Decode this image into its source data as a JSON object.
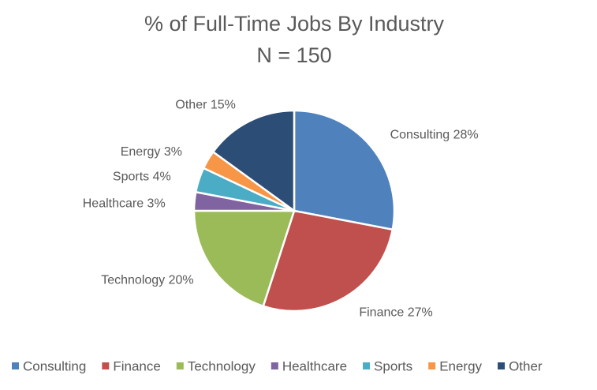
{
  "chart_data": {
    "type": "pie",
    "title": "% of Full-Time Jobs By Industry",
    "subtitle": "N = 150",
    "categories": [
      "Consulting",
      "Finance",
      "Technology",
      "Healthcare",
      "Sports",
      "Energy",
      "Other"
    ],
    "values": [
      28,
      27,
      20,
      3,
      4,
      3,
      15
    ],
    "value_labels": [
      "Consulting 28%",
      "Finance 27%",
      "Technology 20%",
      "Healthcare 3%",
      "Sports 4%",
      "Energy 3%",
      "Other 15%"
    ],
    "colors": [
      "#4f81bd",
      "#c0504d",
      "#9bbb59",
      "#8064a2",
      "#4bacc6",
      "#f79646",
      "#2c4d75"
    ],
    "legend": "bottom"
  }
}
